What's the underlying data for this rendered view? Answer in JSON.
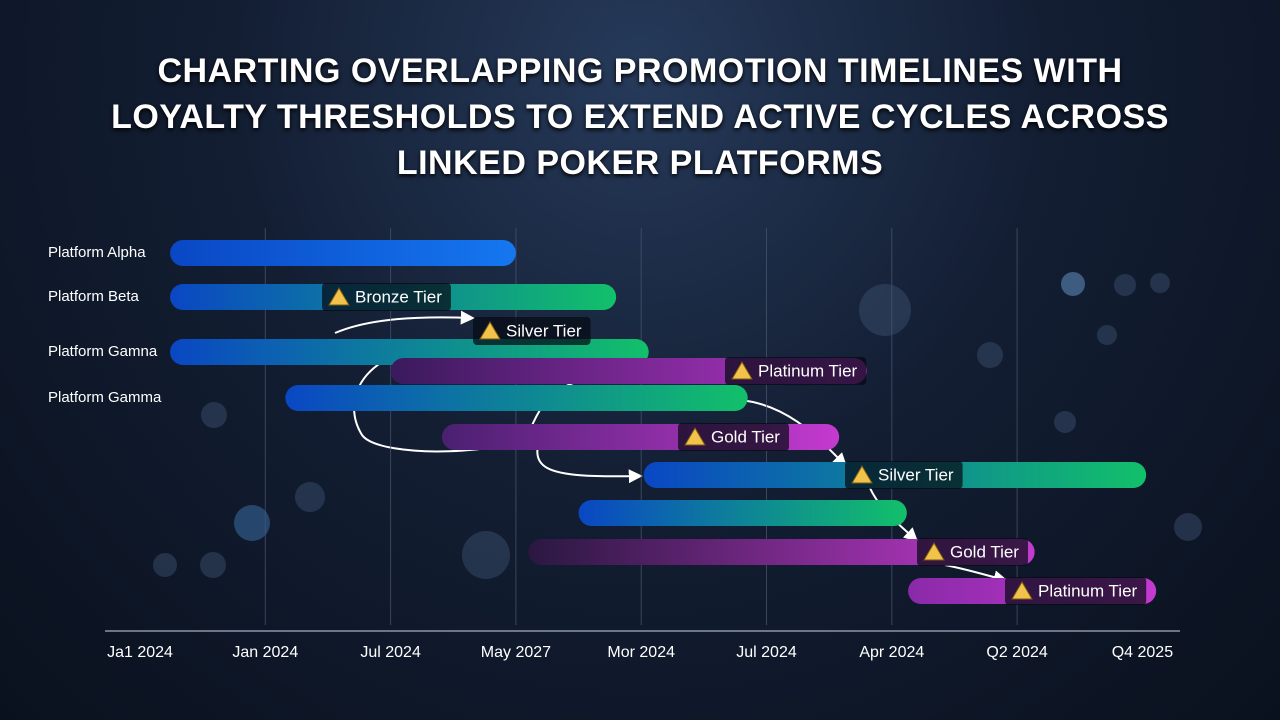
{
  "chart_data": {
    "type": "gantt",
    "title": "CHARTING OVERLAPPING PROMOTION TIMELINES WITH LOYALTY THRESHOLDS TO EXTEND ACTIVE CYCLES ACROSS LINKED POKER PLATFORMS",
    "categories": [
      "Ja1 2024",
      "Jan 2024",
      "Jul 2024",
      "May 2027",
      "Mor 2024",
      "Jul 2024",
      "Apr 2024",
      "Q2 2024",
      "Q4 2025"
    ],
    "grid": true,
    "tasks": [
      {
        "label": "Platform Alpha",
        "start": 0.24,
        "end": 3.0,
        "colors": [
          "#0a47c4",
          "#1577f0"
        ]
      },
      {
        "label": "Platform Beta",
        "start": 0.24,
        "end": 3.8,
        "colors": [
          "#0a47c4",
          "#12c06a"
        ],
        "tier": "Bronze Tier"
      },
      {
        "label": "Platform Gamna",
        "start": 0.24,
        "end": 4.06,
        "colors": [
          "#0a47c4",
          "#12c06a"
        ]
      },
      {
        "label": null,
        "start": 2.0,
        "end": 5.8,
        "colors": [
          "#3a1a5c",
          "#b535c8"
        ],
        "tier": "Platinum Tier"
      },
      {
        "label": "Platform Gamma",
        "start": 1.16,
        "end": 4.85,
        "colors": [
          "#0a47c4",
          "#12c06a"
        ]
      },
      {
        "label": null,
        "start": 2.41,
        "end": 5.58,
        "colors": [
          "#4a2070",
          "#c43ad0"
        ],
        "tier": "Gold Tier"
      },
      {
        "label": null,
        "start": 4.02,
        "end": 8.03,
        "colors": [
          "#0a47c4",
          "#12c06a"
        ],
        "tier": "Silver Tier"
      },
      {
        "label": null,
        "start": 3.5,
        "end": 6.12,
        "colors": [
          "#0a47c4",
          "#12c06a"
        ]
      },
      {
        "label": null,
        "start": 3.1,
        "end": 7.14,
        "colors": [
          "#2a1840",
          "#c43ad0"
        ],
        "tier": "Gold Tier"
      },
      {
        "label": null,
        "start": 6.13,
        "end": 8.11,
        "colors": [
          "#8a2aa8",
          "#c43ad0"
        ],
        "tier": "Platinum Tier"
      }
    ],
    "annotations": [
      "Silver Tier"
    ]
  }
}
